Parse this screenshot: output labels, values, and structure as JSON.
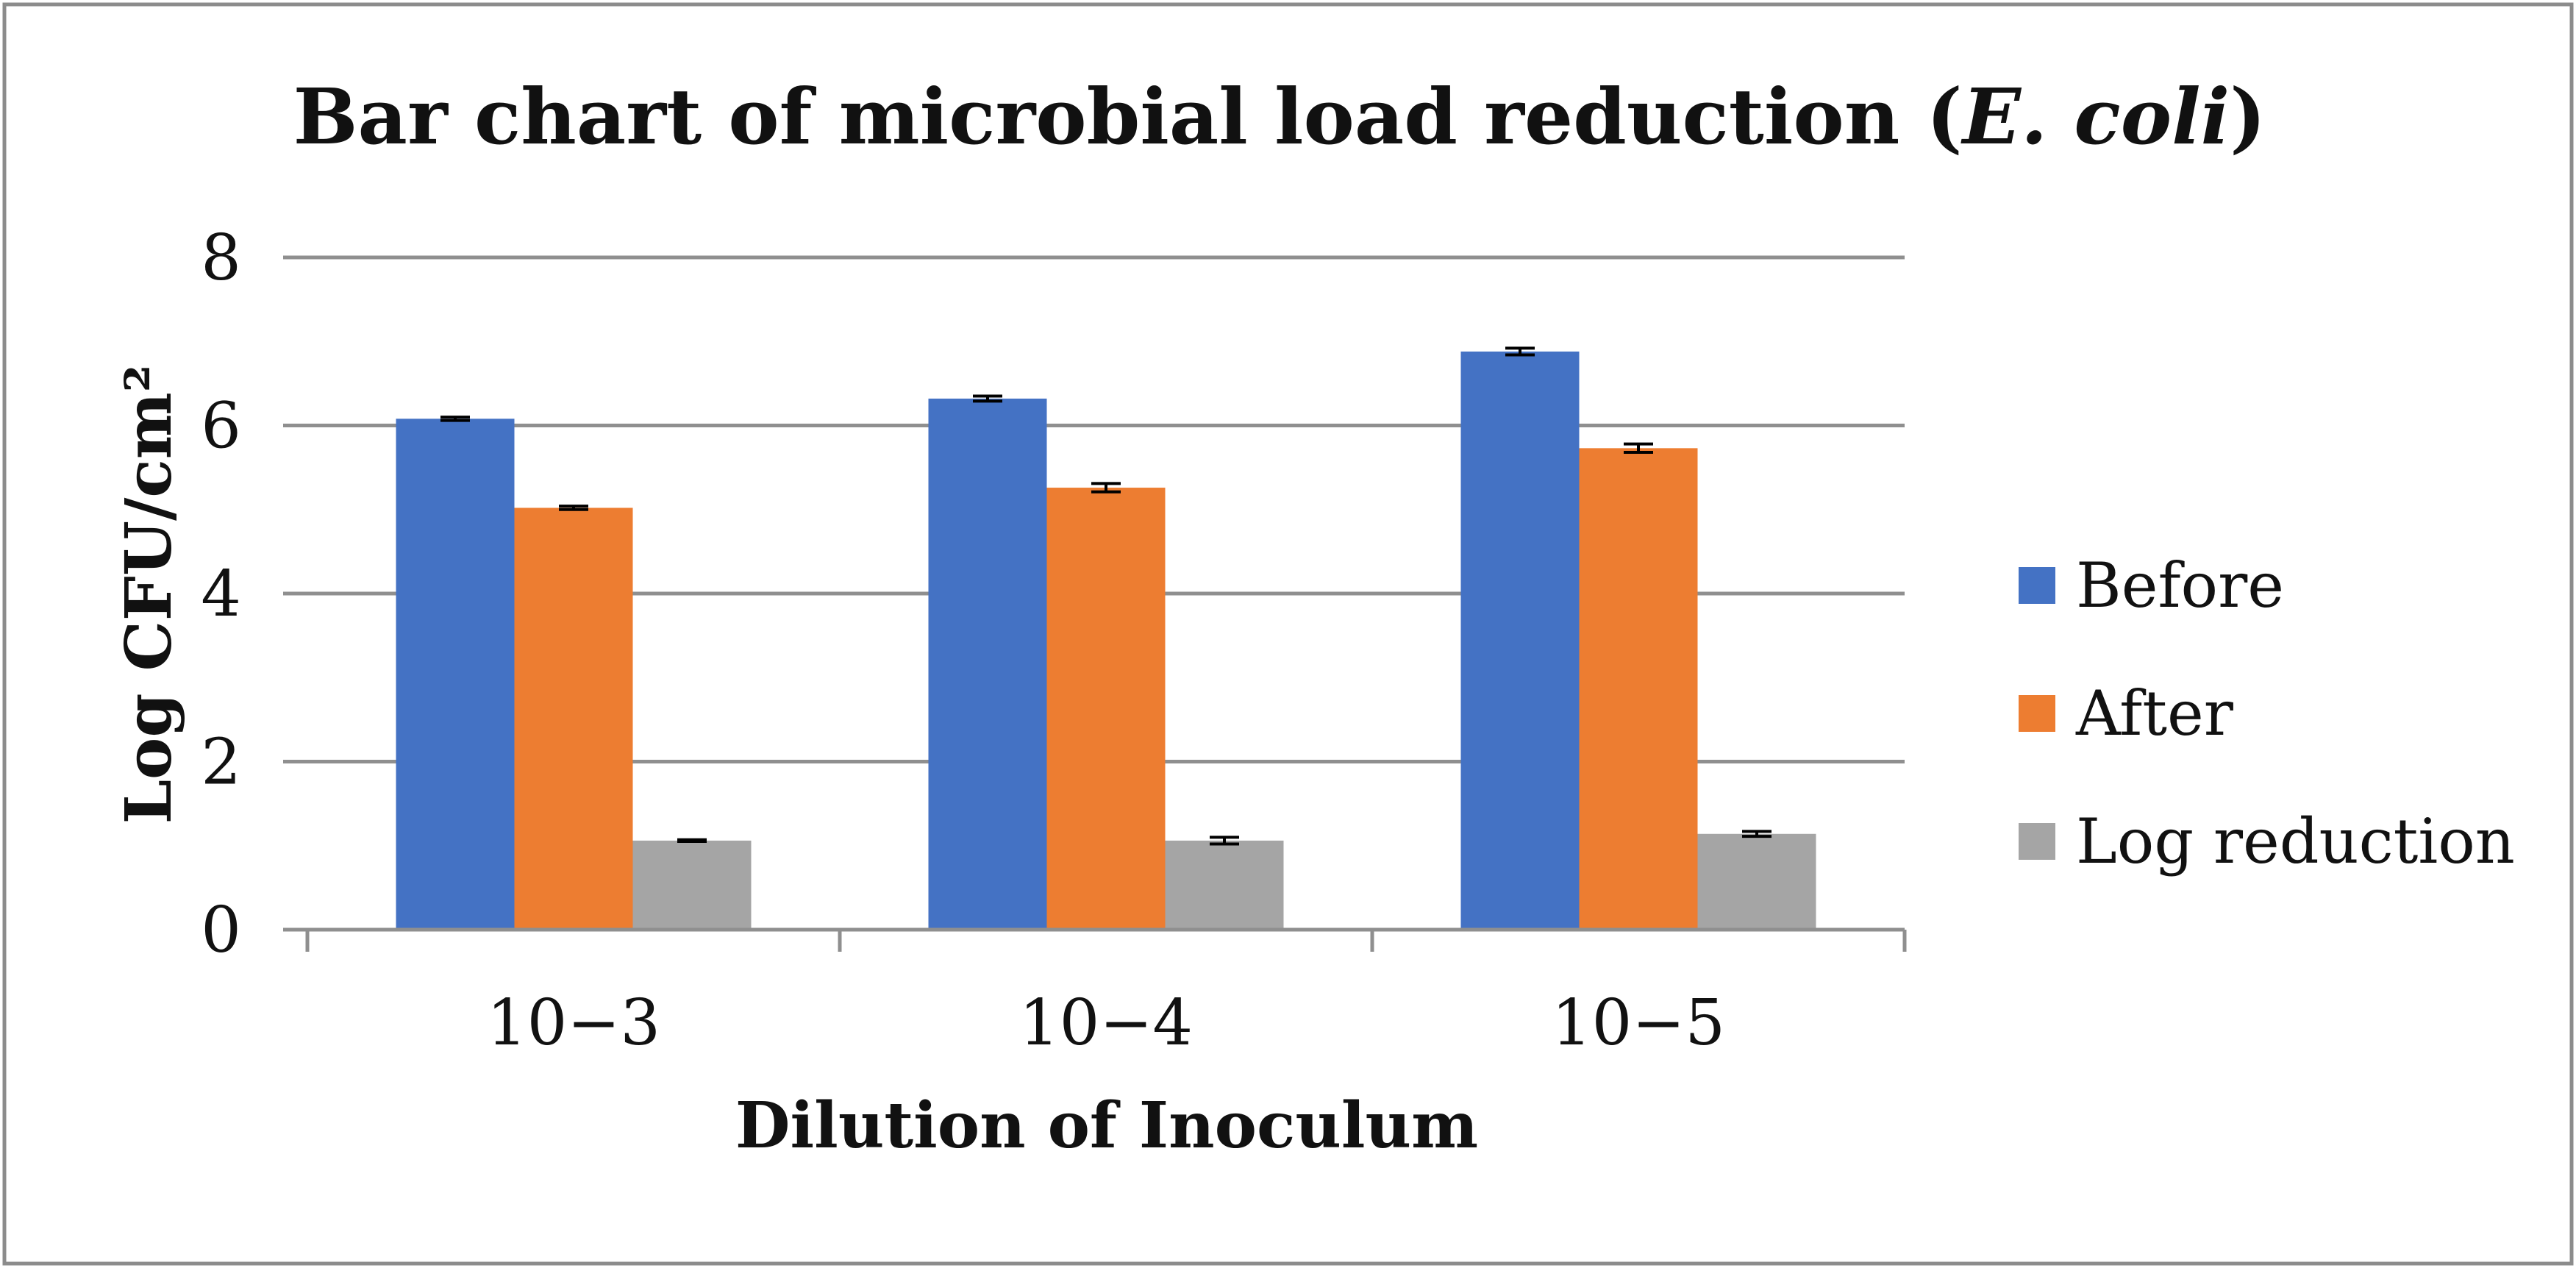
{
  "chart_data": {
    "type": "bar",
    "title_parts": [
      {
        "text": "Bar chart of microbial load reduction (",
        "italic": false
      },
      {
        "text": "E. coli",
        "italic": true
      },
      {
        "text": ")",
        "italic": false
      }
    ],
    "xlabel": "Dilution of Inoculum",
    "ylabel": "Log CFU/cm²",
    "ylim": [
      0,
      8
    ],
    "yticks": [
      0,
      2,
      4,
      6,
      8
    ],
    "grid": true,
    "legend_position": "right",
    "categories": [
      "10−3",
      "10−4",
      "10−5"
    ],
    "series": [
      {
        "name": "Before",
        "color": "#4472C4",
        "values": [
          6.08,
          6.32,
          6.88
        ],
        "errors": [
          0.02,
          0.03,
          0.04
        ]
      },
      {
        "name": "After",
        "color": "#ED7D31",
        "values": [
          5.02,
          5.26,
          5.73
        ],
        "errors": [
          0.02,
          0.05,
          0.05
        ]
      },
      {
        "name": "Log reduction",
        "color": "#A5A5A5",
        "values": [
          1.06,
          1.06,
          1.14
        ],
        "errors": [
          0.01,
          0.04,
          0.03
        ]
      }
    ]
  }
}
